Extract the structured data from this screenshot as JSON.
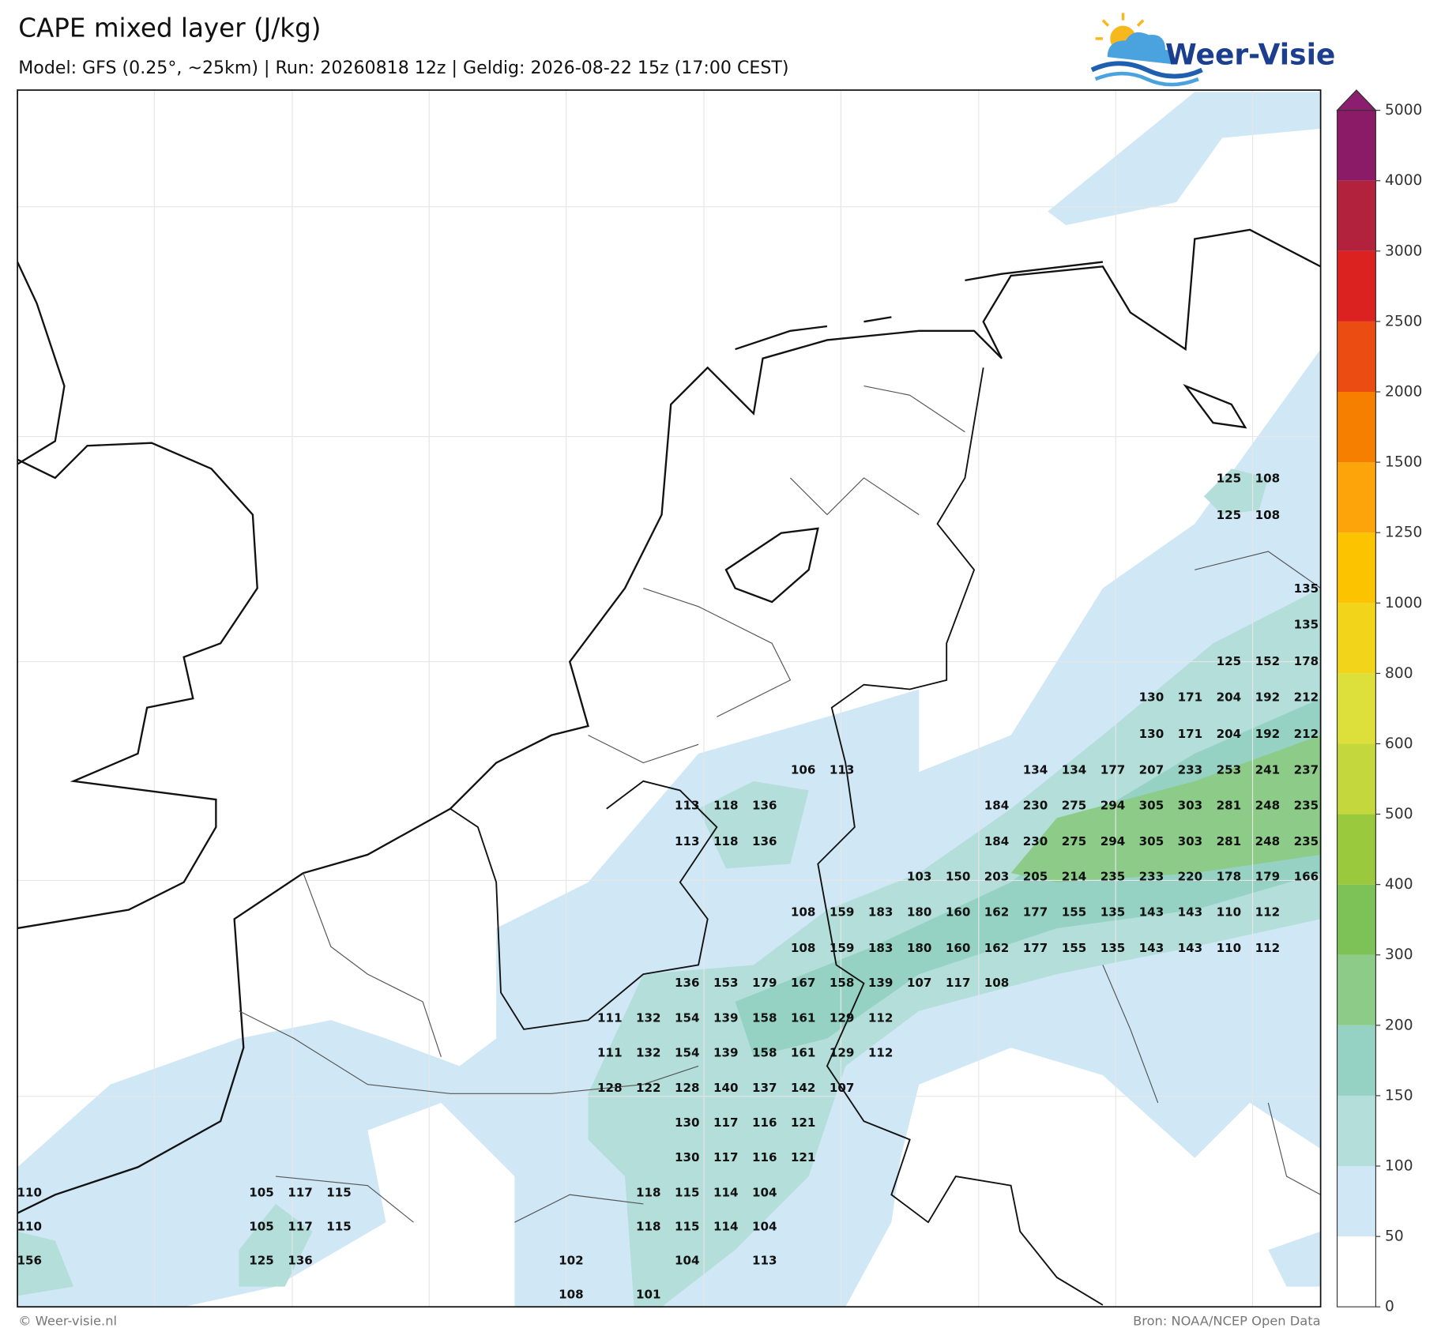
{
  "header": {
    "title": "CAPE mixed layer (J/kg)",
    "subtitle": "Model: GFS (0.25°, ~25km)  |  Run: 20260818 12z  |  Geldig: 2026-08-22 15z (17:00 CEST)",
    "logo": "Weer-Visie"
  },
  "map": {
    "labels": [
      [
        125,
        108
      ],
      [
        125,
        108
      ],
      [
        135
      ],
      [
        135
      ],
      [
        125,
        152,
        178
      ],
      [
        130,
        171,
        204,
        192,
        212
      ],
      [
        130,
        171,
        204,
        192,
        212
      ],
      [
        106,
        113,
        134,
        134,
        177,
        207,
        233,
        253,
        241,
        237
      ],
      [
        113,
        118,
        136,
        184,
        230,
        275,
        294,
        305,
        303,
        281,
        248,
        235
      ],
      [
        113,
        118,
        136,
        184,
        230,
        275,
        294,
        305,
        303,
        281,
        248,
        235
      ],
      [
        103,
        150,
        203,
        205,
        214,
        235,
        233,
        220,
        178,
        179,
        166
      ],
      [
        108,
        159,
        183,
        180,
        160,
        162,
        177,
        155,
        135,
        143,
        143,
        110,
        112
      ],
      [
        108,
        159,
        183,
        180,
        160,
        162,
        177,
        155,
        135,
        143,
        143,
        110,
        112
      ],
      [
        136,
        153,
        179,
        167,
        158,
        139,
        107,
        117,
        108
      ],
      [
        111,
        132,
        154,
        139,
        158,
        161,
        129,
        112
      ],
      [
        111,
        132,
        154,
        139,
        158,
        161,
        129,
        112
      ],
      [
        128,
        122,
        128,
        140,
        137,
        142,
        107
      ],
      [
        130,
        117,
        116,
        121
      ],
      [
        130,
        117,
        116,
        121
      ],
      [
        110,
        105,
        117,
        115,
        118,
        115,
        114,
        104
      ],
      [
        110,
        105,
        117,
        115,
        118,
        115,
        114,
        104
      ],
      [
        156,
        125,
        136,
        102,
        104,
        113
      ],
      [
        108,
        101
      ]
    ]
  },
  "colorbar": {
    "ticks": [
      0,
      50,
      100,
      150,
      200,
      300,
      400,
      500,
      600,
      800,
      1000,
      1250,
      1500,
      2000,
      2500,
      3000,
      4000,
      5000
    ],
    "colors": [
      "#ffffff",
      "#d0e7f6",
      "#b4ded9",
      "#95d2c4",
      "#8ccb88",
      "#7dc257",
      "#9bc93d",
      "#c4d83d",
      "#dde03a",
      "#f2d41a",
      "#fbc300",
      "#fca40a",
      "#f77f00",
      "#ea4c12",
      "#dc2121",
      "#b3223c",
      "#8b1b67"
    ],
    "extend_color": "#8d1d6e"
  },
  "footer": {
    "left": "© Weer-visie.nl",
    "right": "Bron: NOAA/NCEP Open Data"
  }
}
